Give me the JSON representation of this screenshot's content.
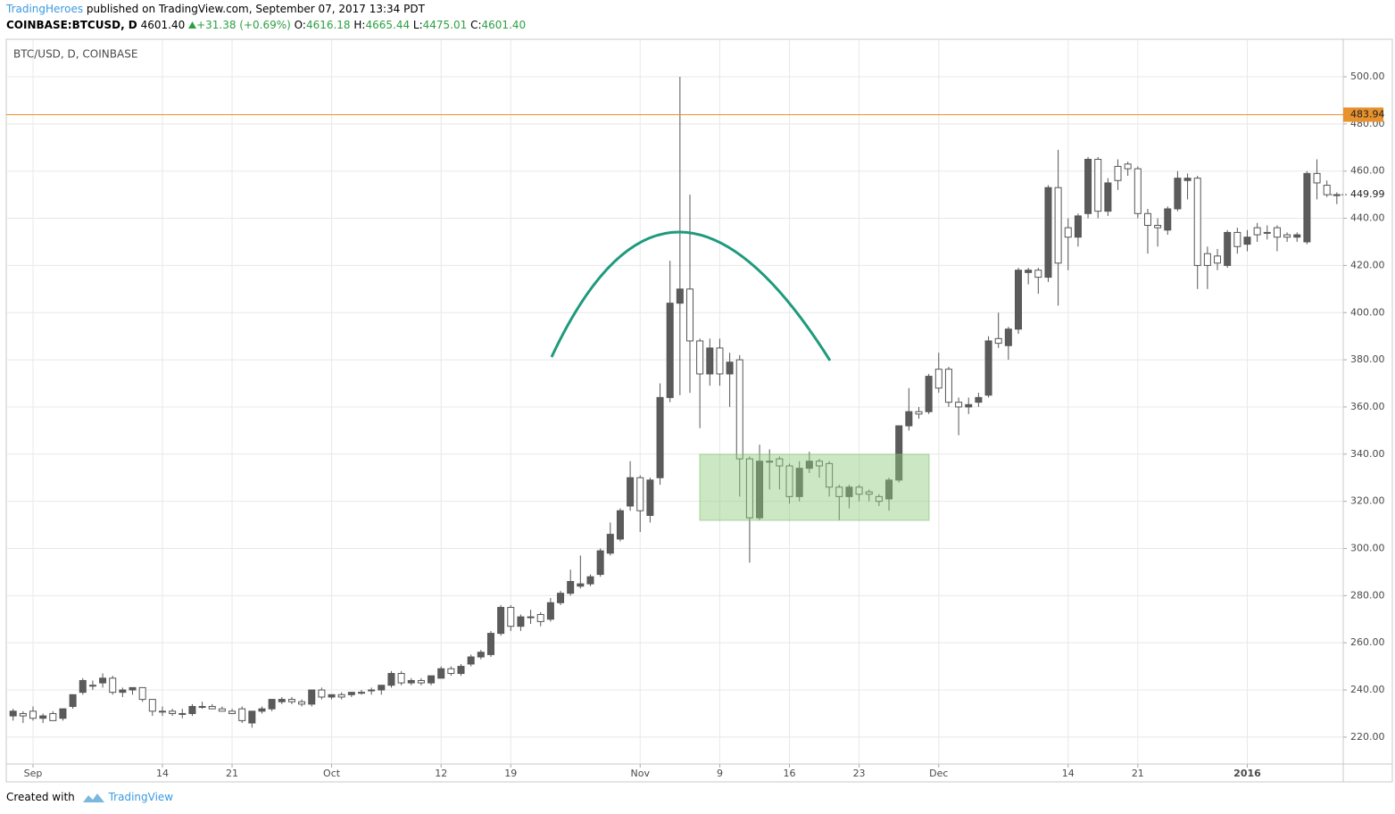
{
  "header": {
    "author": "TradingHeroes",
    "published": "published on TradingView.com, September 07, 2017 13:34 PDT",
    "symbol": "COINBASE:BTCUSD, D",
    "price": "4601.40",
    "change": "+31.38 (+0.69%)",
    "ohlc": [
      {
        "label": "O:",
        "value": "4616.18"
      },
      {
        "label": "H:",
        "value": "4665.44"
      },
      {
        "label": "L:",
        "value": "4475.01"
      },
      {
        "label": "C:",
        "value": "4601.40"
      }
    ]
  },
  "chart_data": {
    "type": "candlestick",
    "title": "BTC/USD, D, COINBASE",
    "x": [
      "2015-08-30",
      "2015-08-31",
      "2015-09-01",
      "2015-09-02",
      "2015-09-03",
      "2015-09-04",
      "2015-09-05",
      "2015-09-06",
      "2015-09-07",
      "2015-09-08",
      "2015-09-09",
      "2015-09-10",
      "2015-09-11",
      "2015-09-12",
      "2015-09-13",
      "2015-09-14",
      "2015-09-15",
      "2015-09-16",
      "2015-09-17",
      "2015-09-18",
      "2015-09-19",
      "2015-09-20",
      "2015-09-21",
      "2015-09-22",
      "2015-09-23",
      "2015-09-24",
      "2015-09-25",
      "2015-09-26",
      "2015-09-27",
      "2015-09-28",
      "2015-09-29",
      "2015-09-30",
      "2015-10-01",
      "2015-10-02",
      "2015-10-03",
      "2015-10-04",
      "2015-10-05",
      "2015-10-06",
      "2015-10-07",
      "2015-10-08",
      "2015-10-09",
      "2015-10-10",
      "2015-10-11",
      "2015-10-12",
      "2015-10-13",
      "2015-10-14",
      "2015-10-15",
      "2015-10-16",
      "2015-10-17",
      "2015-10-18",
      "2015-10-19",
      "2015-10-20",
      "2015-10-21",
      "2015-10-22",
      "2015-10-23",
      "2015-10-24",
      "2015-10-25",
      "2015-10-26",
      "2015-10-27",
      "2015-10-28",
      "2015-10-29",
      "2015-10-30",
      "2015-10-31",
      "2015-11-01",
      "2015-11-02",
      "2015-11-03",
      "2015-11-04",
      "2015-11-05",
      "2015-11-06",
      "2015-11-07",
      "2015-11-08",
      "2015-11-09",
      "2015-11-10",
      "2015-11-11",
      "2015-11-12",
      "2015-11-13",
      "2015-11-14",
      "2015-11-15",
      "2015-11-16",
      "2015-11-17",
      "2015-11-18",
      "2015-11-19",
      "2015-11-20",
      "2015-11-21",
      "2015-11-22",
      "2015-11-23",
      "2015-11-24",
      "2015-11-25",
      "2015-11-26",
      "2015-11-27",
      "2015-11-28",
      "2015-11-29",
      "2015-11-30",
      "2015-12-01",
      "2015-12-02",
      "2015-12-03",
      "2015-12-04",
      "2015-12-05",
      "2015-12-06",
      "2015-12-07",
      "2015-12-08",
      "2015-12-09",
      "2015-12-10",
      "2015-12-11",
      "2015-12-12",
      "2015-12-13",
      "2015-12-14",
      "2015-12-15",
      "2015-12-16",
      "2015-12-17",
      "2015-12-18",
      "2015-12-19",
      "2015-12-20",
      "2015-12-21",
      "2015-12-22",
      "2015-12-23",
      "2015-12-24",
      "2015-12-25",
      "2015-12-26",
      "2015-12-27",
      "2015-12-28",
      "2015-12-29",
      "2015-12-30",
      "2015-12-31",
      "2016-01-01",
      "2016-01-02",
      "2016-01-03",
      "2016-01-04",
      "2016-01-05",
      "2016-01-06",
      "2016-01-07",
      "2016-01-08",
      "2016-01-09",
      "2016-01-10"
    ],
    "open": [
      229,
      230,
      231,
      228,
      230,
      228,
      233,
      239,
      242,
      243,
      245,
      239,
      240,
      241,
      236,
      231,
      231,
      230,
      230,
      233,
      233,
      232,
      231,
      232,
      226,
      231,
      232,
      235,
      236,
      235,
      234,
      240,
      237,
      238,
      238,
      239,
      240,
      240,
      242,
      247,
      243,
      244,
      243,
      245,
      249,
      247,
      251,
      254,
      255,
      264,
      275,
      267,
      271,
      272,
      270,
      277,
      281,
      284,
      285,
      289,
      298,
      304,
      318,
      330,
      314,
      330,
      364,
      404,
      410,
      388,
      374,
      385,
      374,
      380,
      338,
      313,
      337,
      338,
      335,
      322,
      334,
      337,
      336,
      326,
      322,
      326,
      324,
      322,
      321,
      329,
      352,
      358,
      358,
      376,
      376,
      362,
      360,
      362,
      365,
      389,
      386,
      393,
      417,
      418,
      415,
      453,
      436,
      432,
      442,
      465,
      443,
      462,
      463,
      461,
      442,
      437,
      435,
      444,
      456,
      457,
      425,
      424,
      420,
      434,
      429,
      436,
      434,
      436,
      433,
      432,
      430,
      459,
      454,
      450
    ],
    "high": [
      232,
      231,
      233,
      230,
      231,
      232,
      238,
      245,
      244,
      247,
      246,
      241,
      241,
      241,
      236,
      233,
      232,
      232,
      234,
      235,
      234,
      233,
      232,
      233,
      231,
      233,
      236,
      237,
      237,
      236,
      240,
      241,
      238,
      239,
      239,
      240,
      241,
      242,
      248,
      248,
      245,
      245,
      246,
      250,
      250,
      251,
      255,
      257,
      265,
      276,
      276,
      272,
      274,
      273,
      279,
      282,
      291,
      297,
      289,
      300,
      311,
      317,
      337,
      331,
      330,
      370,
      422,
      500,
      450,
      389,
      389,
      389,
      383,
      382,
      339,
      344,
      342,
      339,
      336,
      337,
      341,
      338,
      337,
      327,
      327,
      327,
      325,
      323,
      330,
      352,
      368,
      360,
      374,
      383,
      377,
      364,
      364,
      366,
      390,
      400,
      394,
      419,
      419,
      419,
      454,
      469,
      440,
      442,
      466,
      466,
      457,
      465,
      464,
      462,
      444,
      440,
      445,
      460,
      459,
      458,
      428,
      427,
      435,
      436,
      435,
      438,
      437,
      437,
      434,
      434,
      460,
      465,
      456,
      451
    ],
    "low": [
      227,
      226,
      227,
      226,
      227,
      227,
      232,
      238,
      240,
      241,
      238,
      237,
      238,
      235,
      229,
      229,
      229,
      228,
      229,
      232,
      232,
      231,
      230,
      226,
      224,
      230,
      231,
      234,
      234,
      233,
      233,
      236,
      236,
      236,
      237,
      238,
      238,
      238,
      241,
      242,
      242,
      242,
      242,
      245,
      246,
      246,
      250,
      253,
      254,
      263,
      265,
      265,
      268,
      267,
      269,
      276,
      280,
      283,
      284,
      288,
      297,
      303,
      316,
      307,
      311,
      327,
      362,
      365,
      366,
      351,
      369,
      369,
      360,
      322,
      294,
      312,
      325,
      325,
      319,
      320,
      332,
      330,
      322,
      312,
      317,
      320,
      320,
      318,
      316,
      328,
      350,
      355,
      357,
      366,
      360,
      348,
      357,
      360,
      364,
      385,
      380,
      391,
      412,
      408,
      413,
      403,
      418,
      428,
      440,
      440,
      441,
      452,
      458,
      440,
      425,
      428,
      433,
      443,
      448,
      410,
      410,
      418,
      419,
      425,
      426,
      430,
      431,
      426,
      430,
      430,
      429,
      448,
      449,
      446
    ],
    "close": [
      231,
      229,
      228,
      229,
      227,
      232,
      238,
      244,
      242,
      245,
      239,
      240,
      241,
      236,
      231,
      231,
      230,
      230,
      233,
      233,
      232,
      231,
      230,
      227,
      231,
      232,
      236,
      236,
      235,
      234,
      240,
      237,
      238,
      237,
      239,
      239,
      240,
      242,
      247,
      243,
      244,
      243,
      246,
      249,
      247,
      250,
      254,
      256,
      264,
      275,
      267,
      271,
      271,
      269,
      277,
      281,
      286,
      285,
      288,
      299,
      306,
      316,
      330,
      316,
      329,
      364,
      404,
      410,
      388,
      374,
      385,
      374,
      379,
      338,
      313,
      337,
      337,
      335,
      322,
      334,
      337,
      335,
      326,
      322,
      326,
      323,
      323,
      320,
      329,
      352,
      358,
      357,
      373,
      368,
      362,
      360,
      361,
      364,
      388,
      387,
      393,
      418,
      418,
      415,
      453,
      421,
      432,
      441,
      465,
      443,
      455,
      456,
      461,
      442,
      437,
      436,
      444,
      457,
      457,
      420,
      420,
      421,
      434,
      428,
      432,
      433,
      434,
      432,
      432,
      433,
      459,
      455,
      450,
      449.99
    ],
    "up_color": "#5b5b5b",
    "down_color": "#ffffff",
    "xlim": [
      "2015-08-29",
      "2016-01-11"
    ],
    "xticks": [
      {
        "value": "2015-09-01",
        "label": "Sep"
      },
      {
        "value": "2015-09-14",
        "label": "14"
      },
      {
        "value": "2015-09-21",
        "label": "21"
      },
      {
        "value": "2015-10-01",
        "label": "Oct"
      },
      {
        "value": "2015-10-12",
        "label": "12"
      },
      {
        "value": "2015-10-19",
        "label": "19"
      },
      {
        "value": "2015-11-01",
        "label": "Nov"
      },
      {
        "value": "2015-11-09",
        "label": "9"
      },
      {
        "value": "2015-11-16",
        "label": "16"
      },
      {
        "value": "2015-11-23",
        "label": "23"
      },
      {
        "value": "2015-12-01",
        "label": "Dec"
      },
      {
        "value": "2015-12-14",
        "label": "14"
      },
      {
        "value": "2015-12-21",
        "label": "21"
      },
      {
        "value": "2016-01-01",
        "label": "2016"
      }
    ],
    "ylim": [
      208.6,
      515.9
    ],
    "yticks": [
      {
        "value": 220,
        "label": "220.00"
      },
      {
        "value": 240,
        "label": "240.00"
      },
      {
        "value": 260,
        "label": "260.00"
      },
      {
        "value": 280,
        "label": "280.00"
      },
      {
        "value": 300,
        "label": "300.00"
      },
      {
        "value": 320,
        "label": "320.00"
      },
      {
        "value": 340,
        "label": "340.00"
      },
      {
        "value": 360,
        "label": "360.00"
      },
      {
        "value": 380,
        "label": "380.00"
      },
      {
        "value": 400,
        "label": "400.00"
      },
      {
        "value": 420,
        "label": "420.00"
      },
      {
        "value": 440,
        "label": "440.00"
      },
      {
        "value": 460,
        "label": "460.00"
      },
      {
        "value": 480,
        "label": "480.00"
      },
      {
        "value": 500,
        "label": "500.00"
      }
    ],
    "grid": true,
    "hline": {
      "value": 483.94,
      "color": "#e8912d"
    },
    "last_price": 449.99
  },
  "footer": {
    "text": "Created with",
    "brand": "TradingView"
  }
}
